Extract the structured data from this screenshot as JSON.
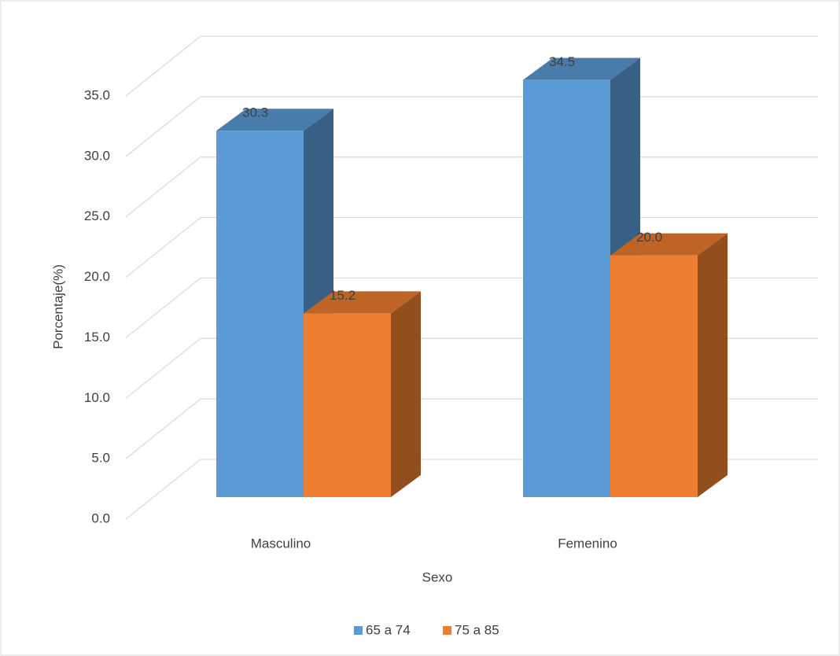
{
  "chart_data": {
    "type": "bar3d",
    "x_label": "Sexo",
    "y_label": "Porcentaje(%)",
    "categories": [
      "Masculino",
      "Femenino"
    ],
    "series": [
      {
        "name": "65 a 74",
        "color": "#5b9bd5",
        "values": [
          30.3,
          34.5
        ],
        "value_labels": [
          "30.3",
          "34.5"
        ]
      },
      {
        "name": "75 a 85",
        "color": "#ed7d31",
        "values": [
          15.2,
          20.0
        ],
        "value_labels": [
          "15.2",
          "20.0"
        ]
      }
    ],
    "ylim": [
      0,
      35
    ],
    "yticks": [
      {
        "value": 0,
        "label": "0.0"
      },
      {
        "value": 5,
        "label": "5.0"
      },
      {
        "value": 10,
        "label": "10.0"
      },
      {
        "value": 15,
        "label": "15.0"
      },
      {
        "value": 20,
        "label": "20.0"
      },
      {
        "value": 25,
        "label": "25.0"
      },
      {
        "value": 30,
        "label": "30.0"
      },
      {
        "value": 35,
        "label": "35.0"
      }
    ],
    "grid": true,
    "legend": "bottom"
  }
}
